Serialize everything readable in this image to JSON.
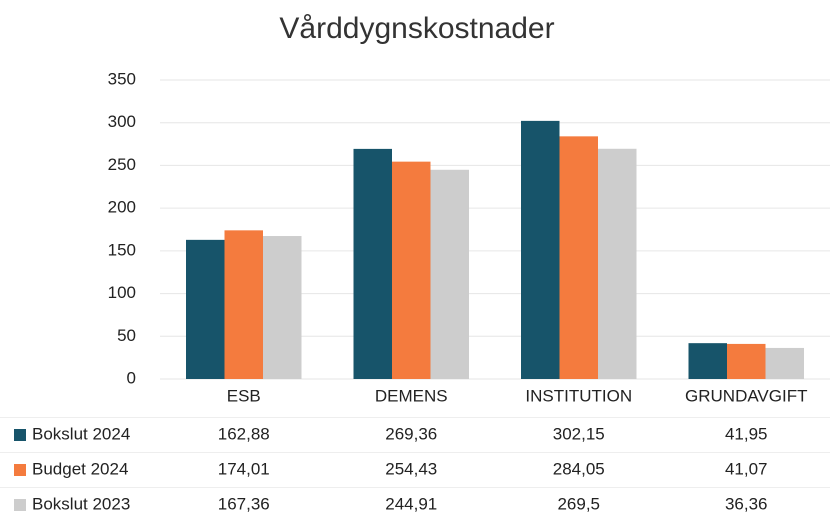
{
  "chart_data": {
    "type": "bar",
    "title": "Vårddygnskostnader",
    "categories": [
      "ESB",
      "DEMENS",
      "INSTITUTION",
      "GRUNDAVGIFT"
    ],
    "series": [
      {
        "name": "Bokslut 2024",
        "color": "#17546a",
        "values": [
          162.88,
          269.36,
          302.15,
          41.95
        ],
        "value_labels": [
          "162,88",
          "269,36",
          "302,15",
          "41,95"
        ]
      },
      {
        "name": "Budget 2024",
        "color": "#f47b3e",
        "values": [
          174.01,
          254.43,
          284.05,
          41.07
        ],
        "value_labels": [
          "174,01",
          "254,43",
          "284,05",
          "41,07"
        ]
      },
      {
        "name": "Bokslut 2023",
        "color": "#cdcdcd",
        "values": [
          167.36,
          244.91,
          269.5,
          36.36
        ],
        "value_labels": [
          "167,36",
          "244,91",
          "269,5",
          "36,36"
        ]
      }
    ],
    "ylim": [
      0,
      350
    ],
    "yticks": [
      0,
      50,
      100,
      150,
      200,
      250,
      300,
      350
    ],
    "grid": true
  }
}
